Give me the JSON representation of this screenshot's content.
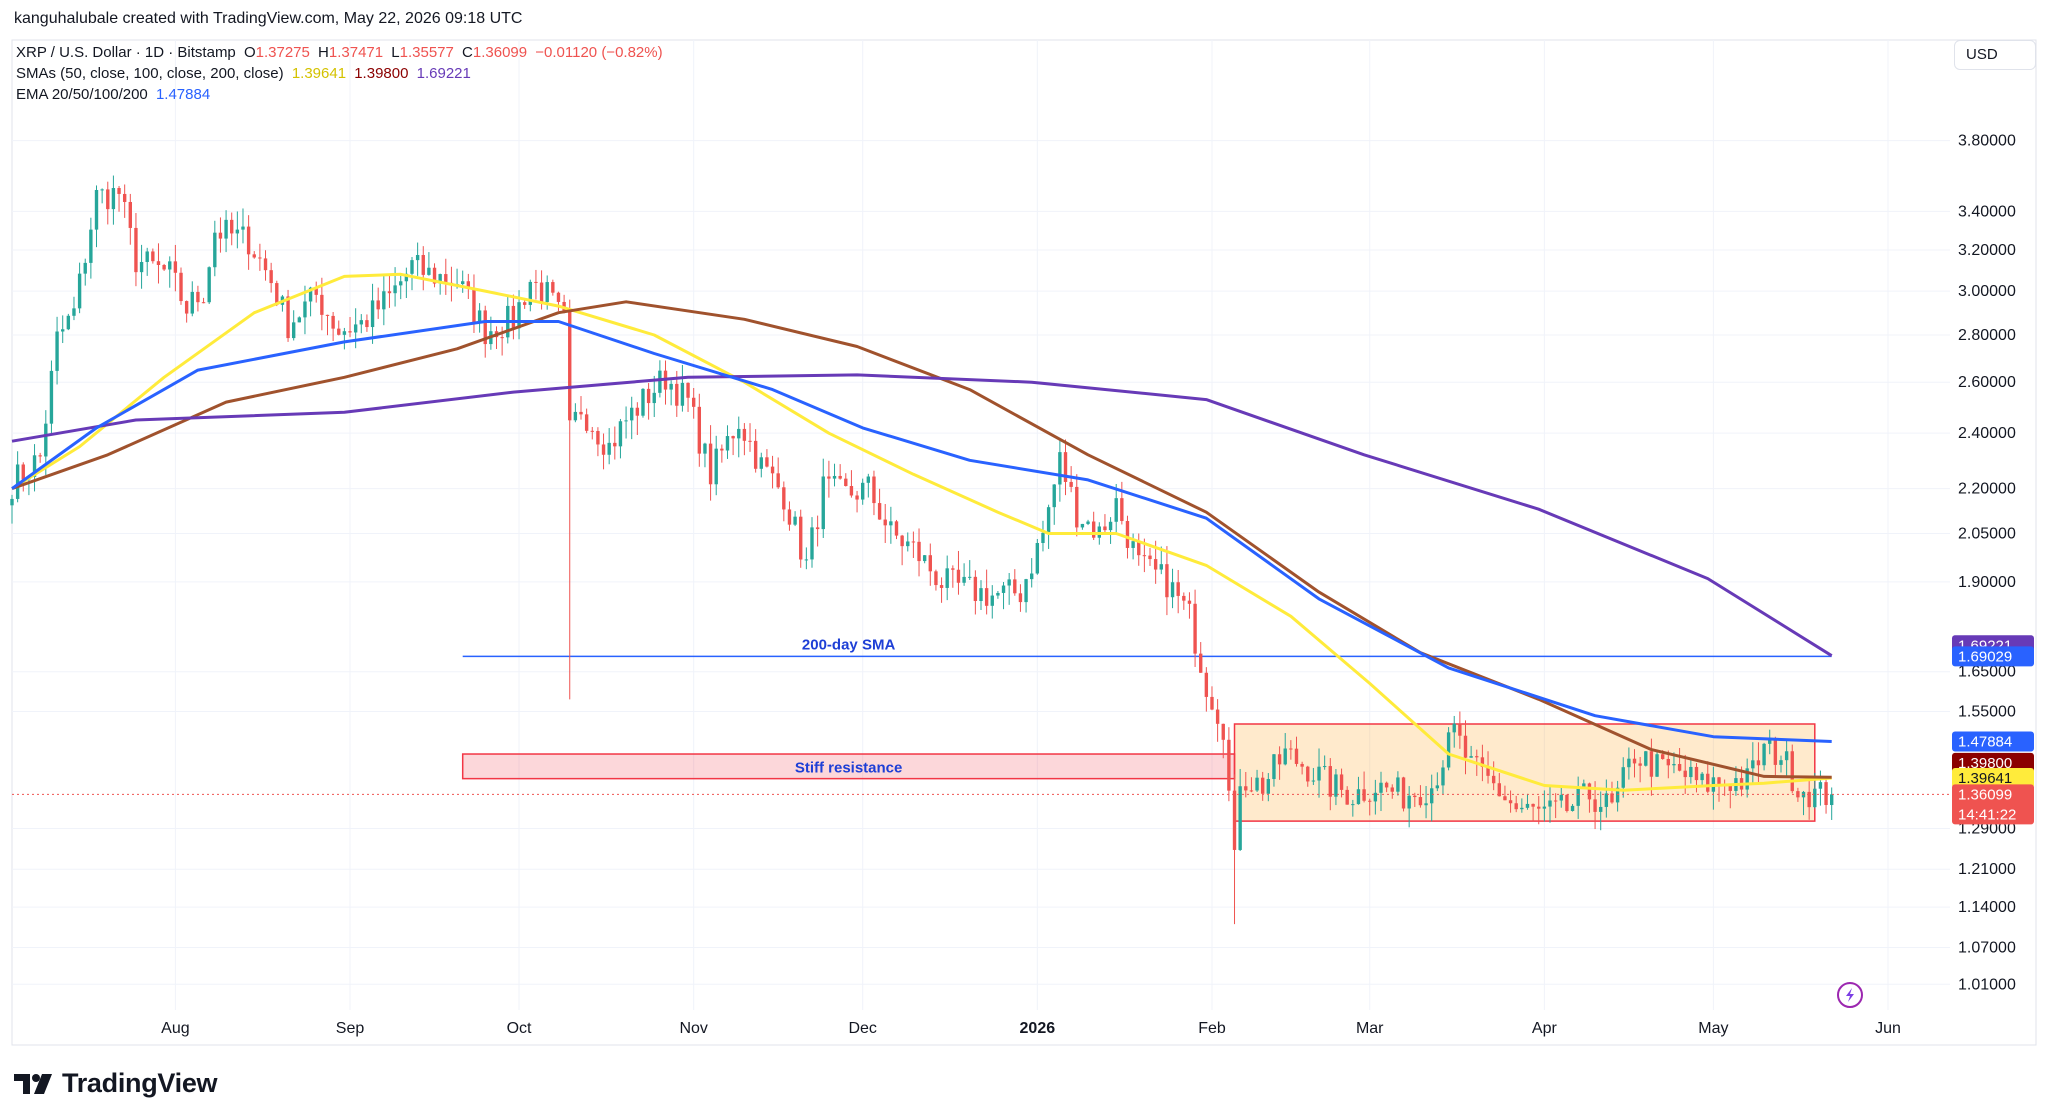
{
  "header": {
    "created_by": "kanguhalubale created with TradingView.com, May 22, 2026 09:18 UTC",
    "symbol_line": {
      "symbol": "XRP / U.S. Dollar · 1D · Bitstamp",
      "o_label": "O",
      "o_value": "1.37275",
      "h_label": "H",
      "h_value": "1.37471",
      "l_label": "L",
      "l_value": "1.35577",
      "c_label": "C",
      "c_value": "1.36099",
      "change": "−0.01120 (−0.82%)"
    },
    "sma_line": {
      "label": "SMAs (50, close, 100, close, 200, close)",
      "v50": "1.39641",
      "v100": "1.39800",
      "v200": "1.69221"
    },
    "ema_line": {
      "label": "EMA 20/50/100/200",
      "v": "1.47884"
    }
  },
  "currency_button": "USD",
  "logo_text": "TradingView",
  "colors": {
    "up": "#26a69a",
    "down": "#ef5350",
    "sma50": "#ffeb3b",
    "sma100": "#a0522d",
    "sma200": "#673ab7",
    "ema": "#2962ff",
    "text": "#131722",
    "grid": "#f0f3fa",
    "annotation_line": "#2962ff",
    "resistance_fill": "rgba(242,54,69,0.20)",
    "range_fill": "rgba(255,152,0,0.20)"
  },
  "chart_data": {
    "type": "candlestick",
    "title": "XRP / U.S. Dollar · 1D · Bitstamp",
    "y_scale": "log",
    "ylim": [
      0.97,
      4.05
    ],
    "y_ticks": [
      "3.80000",
      "3.40000",
      "3.20000",
      "3.00000",
      "2.80000",
      "2.60000",
      "2.40000",
      "2.20000",
      "2.05000",
      "1.90000",
      "1.65000",
      "1.55000",
      "1.29000",
      "1.21000",
      "1.14000",
      "1.07000",
      "1.01000"
    ],
    "x_ticks": [
      "Aug",
      "Sep",
      "Oct",
      "Nov",
      "Dec",
      "2026",
      "Feb",
      "Mar",
      "Apr",
      "May",
      "Jun"
    ],
    "x_tick_dates": [
      "2025-08-01",
      "2025-09-01",
      "2025-10-01",
      "2025-11-01",
      "2025-12-01",
      "2026-01-01",
      "2026-02-01",
      "2026-03-01",
      "2026-04-01",
      "2026-05-01",
      "2026-06-01"
    ],
    "x_range": [
      "2025-07-03",
      "2026-06-12"
    ],
    "grid": true,
    "candles_anchor_close": [
      [
        "2025-07-03",
        2.22
      ],
      [
        "2025-07-08",
        2.31
      ],
      [
        "2025-07-11",
        2.78
      ],
      [
        "2025-07-14",
        2.9
      ],
      [
        "2025-07-18",
        3.48
      ],
      [
        "2025-07-22",
        3.5
      ],
      [
        "2025-07-25",
        3.15
      ],
      [
        "2025-07-31",
        3.08
      ],
      [
        "2025-08-03",
        2.92
      ],
      [
        "2025-08-06",
        3.0
      ],
      [
        "2025-08-08",
        3.3
      ],
      [
        "2025-08-14",
        3.25
      ],
      [
        "2025-08-18",
        3.05
      ],
      [
        "2025-08-21",
        2.85
      ],
      [
        "2025-08-26",
        2.98
      ],
      [
        "2025-08-30",
        2.82
      ],
      [
        "2025-09-03",
        2.85
      ],
      [
        "2025-09-08",
        2.97
      ],
      [
        "2025-09-12",
        3.12
      ],
      [
        "2025-09-15",
        3.08
      ],
      [
        "2025-09-20",
        3.05
      ],
      [
        "2025-09-25",
        2.82
      ],
      [
        "2025-09-30",
        2.87
      ],
      [
        "2025-10-03",
        3.05
      ],
      [
        "2025-10-06",
        2.98
      ],
      [
        "2025-10-09",
        2.85
      ],
      [
        "2025-10-10",
        2.4
      ],
      [
        "2025-10-12",
        2.5
      ],
      [
        "2025-10-17",
        2.35
      ],
      [
        "2025-10-20",
        2.45
      ],
      [
        "2025-10-24",
        2.55
      ],
      [
        "2025-10-27",
        2.62
      ],
      [
        "2025-10-31",
        2.52
      ],
      [
        "2025-11-04",
        2.25
      ],
      [
        "2025-11-09",
        2.45
      ],
      [
        "2025-11-13",
        2.28
      ],
      [
        "2025-11-17",
        2.18
      ],
      [
        "2025-11-21",
        1.95
      ],
      [
        "2025-11-24",
        2.2
      ],
      [
        "2025-11-28",
        2.18
      ],
      [
        "2025-12-02",
        2.2
      ],
      [
        "2025-12-06",
        2.05
      ],
      [
        "2025-12-10",
        2.0
      ],
      [
        "2025-12-15",
        1.9
      ],
      [
        "2025-12-19",
        1.88
      ],
      [
        "2025-12-24",
        1.86
      ],
      [
        "2025-12-29",
        1.87
      ],
      [
        "2026-01-02",
        2.05
      ],
      [
        "2026-01-05",
        2.3
      ],
      [
        "2026-01-08",
        2.12
      ],
      [
        "2026-01-12",
        2.05
      ],
      [
        "2026-01-15",
        2.15
      ],
      [
        "2026-01-19",
        1.95
      ],
      [
        "2026-01-24",
        1.9
      ],
      [
        "2026-01-28",
        1.8
      ],
      [
        "2026-01-31",
        1.62
      ],
      [
        "2026-02-03",
        1.52
      ],
      [
        "2026-02-05",
        1.22
      ],
      [
        "2026-02-06",
        1.4
      ],
      [
        "2026-02-10",
        1.38
      ],
      [
        "2026-02-14",
        1.45
      ],
      [
        "2026-02-18",
        1.42
      ],
      [
        "2026-02-22",
        1.38
      ],
      [
        "2026-02-26",
        1.36
      ],
      [
        "2026-03-02",
        1.38
      ],
      [
        "2026-03-07",
        1.36
      ],
      [
        "2026-03-12",
        1.38
      ],
      [
        "2026-03-16",
        1.5
      ],
      [
        "2026-03-19",
        1.42
      ],
      [
        "2026-03-23",
        1.38
      ],
      [
        "2026-03-27",
        1.33
      ],
      [
        "2026-04-01",
        1.32
      ],
      [
        "2026-04-05",
        1.33
      ],
      [
        "2026-04-09",
        1.36
      ],
      [
        "2026-04-13",
        1.33
      ],
      [
        "2026-04-17",
        1.45
      ],
      [
        "2026-04-21",
        1.42
      ],
      [
        "2026-04-25",
        1.41
      ],
      [
        "2026-04-29",
        1.38
      ],
      [
        "2026-05-03",
        1.39
      ],
      [
        "2026-05-07",
        1.39
      ],
      [
        "2026-05-10",
        1.46
      ],
      [
        "2026-05-13",
        1.45
      ],
      [
        "2026-05-16",
        1.38
      ],
      [
        "2026-05-19",
        1.36
      ],
      [
        "2026-05-22",
        1.36099
      ]
    ],
    "spikes": [
      {
        "date": "2025-10-10",
        "low": 1.58
      },
      {
        "date": "2026-02-05",
        "low": 1.11
      }
    ],
    "series": [
      {
        "name": "SMA 50",
        "label_value": "1.39641",
        "values": [
          [
            "2025-07-03",
            2.2
          ],
          [
            "2025-07-15",
            2.35
          ],
          [
            "2025-07-30",
            2.62
          ],
          [
            "2025-08-15",
            2.9
          ],
          [
            "2025-08-31",
            3.07
          ],
          [
            "2025-09-10",
            3.08
          ],
          [
            "2025-09-25",
            3.0
          ],
          [
            "2025-10-08",
            2.93
          ],
          [
            "2025-10-25",
            2.8
          ],
          [
            "2025-11-10",
            2.6
          ],
          [
            "2025-11-25",
            2.4
          ],
          [
            "2025-12-10",
            2.25
          ],
          [
            "2025-12-25",
            2.12
          ],
          [
            "2026-01-03",
            2.05
          ],
          [
            "2026-01-15",
            2.05
          ],
          [
            "2026-01-31",
            1.95
          ],
          [
            "2026-02-15",
            1.8
          ],
          [
            "2026-03-01",
            1.62
          ],
          [
            "2026-03-15",
            1.45
          ],
          [
            "2026-04-01",
            1.38
          ],
          [
            "2026-04-15",
            1.37
          ],
          [
            "2026-05-01",
            1.38
          ],
          [
            "2026-05-10",
            1.385
          ],
          [
            "2026-05-22",
            1.39641
          ]
        ]
      },
      {
        "name": "SMA 100",
        "label_value": "1.39800",
        "values": [
          [
            "2025-07-03",
            2.2
          ],
          [
            "2025-07-20",
            2.32
          ],
          [
            "2025-08-10",
            2.52
          ],
          [
            "2025-08-31",
            2.62
          ],
          [
            "2025-09-20",
            2.74
          ],
          [
            "2025-10-08",
            2.9
          ],
          [
            "2025-10-20",
            2.95
          ],
          [
            "2025-11-10",
            2.87
          ],
          [
            "2025-11-30",
            2.75
          ],
          [
            "2025-12-20",
            2.57
          ],
          [
            "2026-01-10",
            2.32
          ],
          [
            "2026-01-31",
            2.12
          ],
          [
            "2026-02-20",
            1.87
          ],
          [
            "2026-03-10",
            1.7
          ],
          [
            "2026-03-31",
            1.58
          ],
          [
            "2026-04-20",
            1.46
          ],
          [
            "2026-05-10",
            1.4
          ],
          [
            "2026-05-22",
            1.398
          ]
        ]
      },
      {
        "name": "SMA 200",
        "label_value": "1.69221",
        "values": [
          [
            "2025-07-03",
            2.37
          ],
          [
            "2025-07-25",
            2.45
          ],
          [
            "2025-08-31",
            2.48
          ],
          [
            "2025-09-30",
            2.56
          ],
          [
            "2025-10-31",
            2.62
          ],
          [
            "2025-11-30",
            2.63
          ],
          [
            "2025-12-31",
            2.6
          ],
          [
            "2026-01-31",
            2.53
          ],
          [
            "2026-02-28",
            2.32
          ],
          [
            "2026-03-31",
            2.13
          ],
          [
            "2026-04-30",
            1.91
          ],
          [
            "2026-05-22",
            1.69221
          ]
        ]
      },
      {
        "name": "EMA 20/50/100/200",
        "label_value": "1.47884",
        "values": [
          [
            "2025-07-03",
            2.2
          ],
          [
            "2025-07-18",
            2.42
          ],
          [
            "2025-08-05",
            2.65
          ],
          [
            "2025-08-31",
            2.77
          ],
          [
            "2025-09-25",
            2.86
          ],
          [
            "2025-10-08",
            2.86
          ],
          [
            "2025-10-25",
            2.72
          ],
          [
            "2025-11-15",
            2.57
          ],
          [
            "2025-12-01",
            2.42
          ],
          [
            "2025-12-20",
            2.3
          ],
          [
            "2026-01-10",
            2.23
          ],
          [
            "2026-01-31",
            2.1
          ],
          [
            "2026-02-20",
            1.85
          ],
          [
            "2026-03-15",
            1.66
          ],
          [
            "2026-04-10",
            1.54
          ],
          [
            "2026-05-01",
            1.49
          ],
          [
            "2026-05-22",
            1.47884
          ]
        ]
      }
    ],
    "last_price": "1.36099",
    "countdown": "14:41:22",
    "line_label_200": "1.69029",
    "annotations": {
      "sma_line": {
        "label": "200-day SMA",
        "value": 1.69029,
        "from": "2025-09-21",
        "to": "2026-05-22"
      },
      "resistance": {
        "label": "Stiff resistance",
        "top": 1.45,
        "bottom": 1.395,
        "from": "2025-09-21",
        "to": "2026-02-05"
      },
      "range_box": {
        "top": 1.52,
        "bottom": 1.305,
        "from": "2026-02-05",
        "to": "2026-05-19"
      }
    }
  }
}
